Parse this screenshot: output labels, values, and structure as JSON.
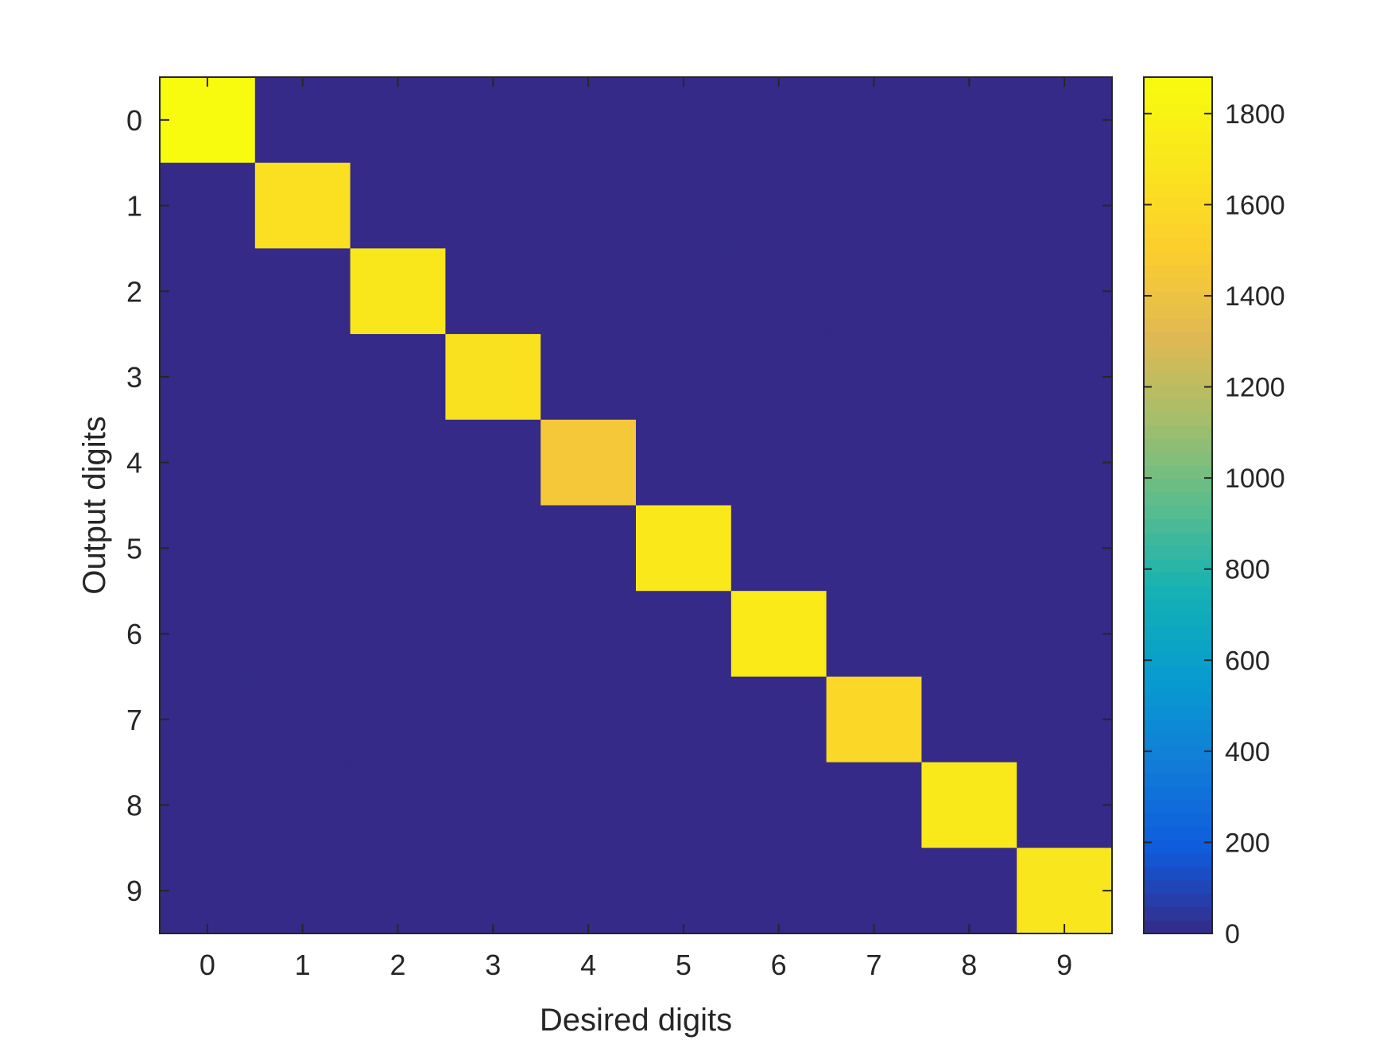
{
  "chart_data": {
    "type": "heatmap",
    "title": "",
    "xlabel": "Desired digits",
    "ylabel": "Output digits",
    "x_categories": [
      "0",
      "1",
      "2",
      "3",
      "4",
      "5",
      "6",
      "7",
      "8",
      "9"
    ],
    "y_categories": [
      "0",
      "1",
      "2",
      "3",
      "4",
      "5",
      "6",
      "7",
      "8",
      "9"
    ],
    "values": [
      [
        1880,
        0,
        0,
        0,
        0,
        0,
        0,
        0,
        0,
        0
      ],
      [
        0,
        1640,
        0,
        0,
        0,
        0,
        0,
        0,
        0,
        0
      ],
      [
        0,
        0,
        1700,
        0,
        0,
        0,
        0,
        0,
        0,
        0
      ],
      [
        0,
        0,
        0,
        1650,
        0,
        0,
        0,
        0,
        0,
        0
      ],
      [
        0,
        0,
        0,
        0,
        1450,
        0,
        0,
        0,
        0,
        0
      ],
      [
        0,
        0,
        0,
        0,
        0,
        1710,
        0,
        0,
        0,
        0
      ],
      [
        0,
        0,
        0,
        0,
        0,
        0,
        1740,
        0,
        0,
        0
      ],
      [
        0,
        0,
        0,
        0,
        0,
        0,
        0,
        1580,
        0,
        0
      ],
      [
        0,
        0,
        0,
        0,
        0,
        0,
        0,
        0,
        1720,
        0
      ],
      [
        0,
        0,
        0,
        0,
        0,
        0,
        0,
        0,
        0,
        1690
      ]
    ],
    "colorbar": {
      "min": 0,
      "max": 1880,
      "ticks": [
        0,
        200,
        400,
        600,
        800,
        1000,
        1200,
        1400,
        1600,
        1800
      ],
      "tick_labels": [
        "0",
        "200",
        "400",
        "600",
        "800",
        "1000",
        "1200",
        "1400",
        "1600",
        "1800"
      ],
      "colormap": "parula"
    },
    "grid": false,
    "legend": "none"
  },
  "colors": {
    "axes": "#262626",
    "background": "#ffffff"
  }
}
